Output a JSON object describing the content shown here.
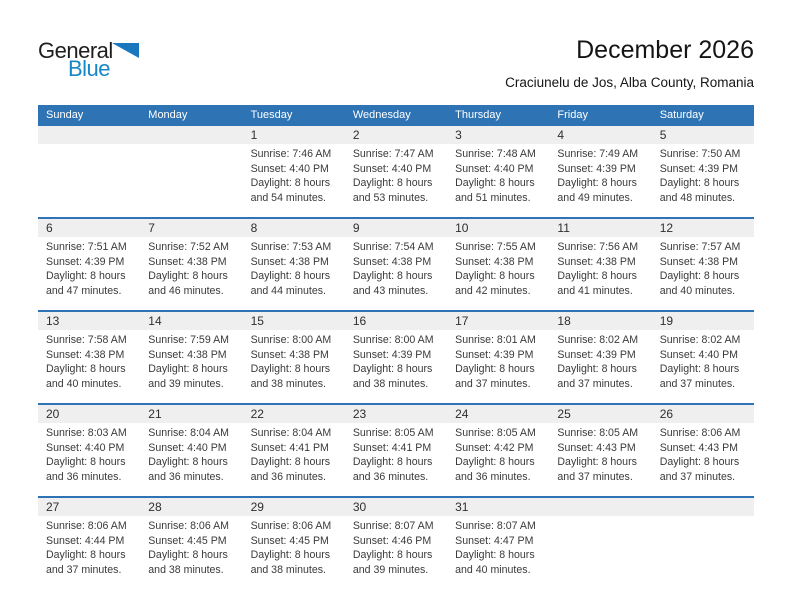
{
  "logo": {
    "word1": "General",
    "word2": "Blue"
  },
  "header": {
    "title": "December 2026",
    "subtitle": "Craciunelu de Jos, Alba County, Romania"
  },
  "colors": {
    "header_bar": "#2e74b5",
    "week_separator": "#2e74b5",
    "day_strip": "#efefef",
    "logo_blue": "#1787c7",
    "logo_triangle": "#1a76bd"
  },
  "calendar": {
    "weekdays": [
      "Sunday",
      "Monday",
      "Tuesday",
      "Wednesday",
      "Thursday",
      "Friday",
      "Saturday"
    ],
    "weeks": [
      {
        "cells": [
          {
            "day": "",
            "sunrise": "",
            "sunset": "",
            "daylight1": "",
            "daylight2": ""
          },
          {
            "day": "",
            "sunrise": "",
            "sunset": "",
            "daylight1": "",
            "daylight2": ""
          },
          {
            "day": "1",
            "sunrise": "Sunrise: 7:46 AM",
            "sunset": "Sunset: 4:40 PM",
            "daylight1": "Daylight: 8 hours",
            "daylight2": "and 54 minutes."
          },
          {
            "day": "2",
            "sunrise": "Sunrise: 7:47 AM",
            "sunset": "Sunset: 4:40 PM",
            "daylight1": "Daylight: 8 hours",
            "daylight2": "and 53 minutes."
          },
          {
            "day": "3",
            "sunrise": "Sunrise: 7:48 AM",
            "sunset": "Sunset: 4:40 PM",
            "daylight1": "Daylight: 8 hours",
            "daylight2": "and 51 minutes."
          },
          {
            "day": "4",
            "sunrise": "Sunrise: 7:49 AM",
            "sunset": "Sunset: 4:39 PM",
            "daylight1": "Daylight: 8 hours",
            "daylight2": "and 49 minutes."
          },
          {
            "day": "5",
            "sunrise": "Sunrise: 7:50 AM",
            "sunset": "Sunset: 4:39 PM",
            "daylight1": "Daylight: 8 hours",
            "daylight2": "and 48 minutes."
          }
        ]
      },
      {
        "cells": [
          {
            "day": "6",
            "sunrise": "Sunrise: 7:51 AM",
            "sunset": "Sunset: 4:39 PM",
            "daylight1": "Daylight: 8 hours",
            "daylight2": "and 47 minutes."
          },
          {
            "day": "7",
            "sunrise": "Sunrise: 7:52 AM",
            "sunset": "Sunset: 4:38 PM",
            "daylight1": "Daylight: 8 hours",
            "daylight2": "and 46 minutes."
          },
          {
            "day": "8",
            "sunrise": "Sunrise: 7:53 AM",
            "sunset": "Sunset: 4:38 PM",
            "daylight1": "Daylight: 8 hours",
            "daylight2": "and 44 minutes."
          },
          {
            "day": "9",
            "sunrise": "Sunrise: 7:54 AM",
            "sunset": "Sunset: 4:38 PM",
            "daylight1": "Daylight: 8 hours",
            "daylight2": "and 43 minutes."
          },
          {
            "day": "10",
            "sunrise": "Sunrise: 7:55 AM",
            "sunset": "Sunset: 4:38 PM",
            "daylight1": "Daylight: 8 hours",
            "daylight2": "and 42 minutes."
          },
          {
            "day": "11",
            "sunrise": "Sunrise: 7:56 AM",
            "sunset": "Sunset: 4:38 PM",
            "daylight1": "Daylight: 8 hours",
            "daylight2": "and 41 minutes."
          },
          {
            "day": "12",
            "sunrise": "Sunrise: 7:57 AM",
            "sunset": "Sunset: 4:38 PM",
            "daylight1": "Daylight: 8 hours",
            "daylight2": "and 40 minutes."
          }
        ]
      },
      {
        "cells": [
          {
            "day": "13",
            "sunrise": "Sunrise: 7:58 AM",
            "sunset": "Sunset: 4:38 PM",
            "daylight1": "Daylight: 8 hours",
            "daylight2": "and 40 minutes."
          },
          {
            "day": "14",
            "sunrise": "Sunrise: 7:59 AM",
            "sunset": "Sunset: 4:38 PM",
            "daylight1": "Daylight: 8 hours",
            "daylight2": "and 39 minutes."
          },
          {
            "day": "15",
            "sunrise": "Sunrise: 8:00 AM",
            "sunset": "Sunset: 4:38 PM",
            "daylight1": "Daylight: 8 hours",
            "daylight2": "and 38 minutes."
          },
          {
            "day": "16",
            "sunrise": "Sunrise: 8:00 AM",
            "sunset": "Sunset: 4:39 PM",
            "daylight1": "Daylight: 8 hours",
            "daylight2": "and 38 minutes."
          },
          {
            "day": "17",
            "sunrise": "Sunrise: 8:01 AM",
            "sunset": "Sunset: 4:39 PM",
            "daylight1": "Daylight: 8 hours",
            "daylight2": "and 37 minutes."
          },
          {
            "day": "18",
            "sunrise": "Sunrise: 8:02 AM",
            "sunset": "Sunset: 4:39 PM",
            "daylight1": "Daylight: 8 hours",
            "daylight2": "and 37 minutes."
          },
          {
            "day": "19",
            "sunrise": "Sunrise: 8:02 AM",
            "sunset": "Sunset: 4:40 PM",
            "daylight1": "Daylight: 8 hours",
            "daylight2": "and 37 minutes."
          }
        ]
      },
      {
        "cells": [
          {
            "day": "20",
            "sunrise": "Sunrise: 8:03 AM",
            "sunset": "Sunset: 4:40 PM",
            "daylight1": "Daylight: 8 hours",
            "daylight2": "and 36 minutes."
          },
          {
            "day": "21",
            "sunrise": "Sunrise: 8:04 AM",
            "sunset": "Sunset: 4:40 PM",
            "daylight1": "Daylight: 8 hours",
            "daylight2": "and 36 minutes."
          },
          {
            "day": "22",
            "sunrise": "Sunrise: 8:04 AM",
            "sunset": "Sunset: 4:41 PM",
            "daylight1": "Daylight: 8 hours",
            "daylight2": "and 36 minutes."
          },
          {
            "day": "23",
            "sunrise": "Sunrise: 8:05 AM",
            "sunset": "Sunset: 4:41 PM",
            "daylight1": "Daylight: 8 hours",
            "daylight2": "and 36 minutes."
          },
          {
            "day": "24",
            "sunrise": "Sunrise: 8:05 AM",
            "sunset": "Sunset: 4:42 PM",
            "daylight1": "Daylight: 8 hours",
            "daylight2": "and 36 minutes."
          },
          {
            "day": "25",
            "sunrise": "Sunrise: 8:05 AM",
            "sunset": "Sunset: 4:43 PM",
            "daylight1": "Daylight: 8 hours",
            "daylight2": "and 37 minutes."
          },
          {
            "day": "26",
            "sunrise": "Sunrise: 8:06 AM",
            "sunset": "Sunset: 4:43 PM",
            "daylight1": "Daylight: 8 hours",
            "daylight2": "and 37 minutes."
          }
        ]
      },
      {
        "cells": [
          {
            "day": "27",
            "sunrise": "Sunrise: 8:06 AM",
            "sunset": "Sunset: 4:44 PM",
            "daylight1": "Daylight: 8 hours",
            "daylight2": "and 37 minutes."
          },
          {
            "day": "28",
            "sunrise": "Sunrise: 8:06 AM",
            "sunset": "Sunset: 4:45 PM",
            "daylight1": "Daylight: 8 hours",
            "daylight2": "and 38 minutes."
          },
          {
            "day": "29",
            "sunrise": "Sunrise: 8:06 AM",
            "sunset": "Sunset: 4:45 PM",
            "daylight1": "Daylight: 8 hours",
            "daylight2": "and 38 minutes."
          },
          {
            "day": "30",
            "sunrise": "Sunrise: 8:07 AM",
            "sunset": "Sunset: 4:46 PM",
            "daylight1": "Daylight: 8 hours",
            "daylight2": "and 39 minutes."
          },
          {
            "day": "31",
            "sunrise": "Sunrise: 8:07 AM",
            "sunset": "Sunset: 4:47 PM",
            "daylight1": "Daylight: 8 hours",
            "daylight2": "and 40 minutes."
          },
          {
            "day": "",
            "sunrise": "",
            "sunset": "",
            "daylight1": "",
            "daylight2": ""
          },
          {
            "day": "",
            "sunrise": "",
            "sunset": "",
            "daylight1": "",
            "daylight2": ""
          }
        ]
      }
    ]
  }
}
